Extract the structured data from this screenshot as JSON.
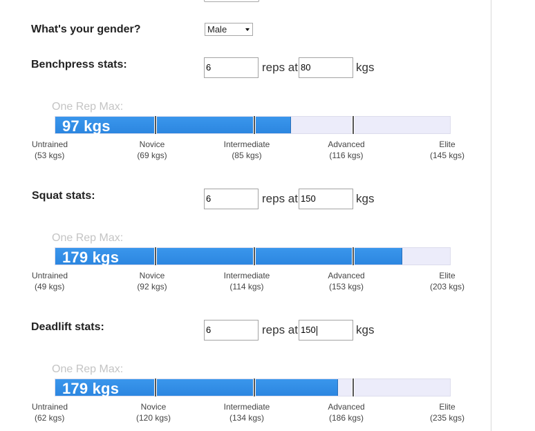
{
  "gender": {
    "label": "What's your gender?",
    "value": "Male"
  },
  "common": {
    "reps_at": "reps at",
    "unit": "kgs",
    "one_rep_max": "One Rep Max:"
  },
  "lifts": [
    {
      "label": "Benchpress stats:",
      "reps": "6",
      "weight": "80",
      "one_rep_max": "97 kgs",
      "fill_fraction": 0.595,
      "levels": [
        {
          "name": "Untrained",
          "kgs": "(53 kgs)"
        },
        {
          "name": "Novice",
          "kgs": "(69 kgs)"
        },
        {
          "name": "Intermediate",
          "kgs": "(85 kgs)"
        },
        {
          "name": "Advanced",
          "kgs": "(116 kgs)"
        },
        {
          "name": "Elite",
          "kgs": "(145 kgs)"
        }
      ]
    },
    {
      "label": "Squat stats:",
      "reps": "6",
      "weight": "150",
      "one_rep_max": "179 kgs",
      "fill_fraction": 0.878,
      "levels": [
        {
          "name": "Untrained",
          "kgs": "(49 kgs)"
        },
        {
          "name": "Novice",
          "kgs": "(92 kgs)"
        },
        {
          "name": "Intermediate",
          "kgs": "(114 kgs)"
        },
        {
          "name": "Advanced",
          "kgs": "(153 kgs)"
        },
        {
          "name": "Elite",
          "kgs": "(203 kgs)"
        }
      ]
    },
    {
      "label": "Deadlift stats:",
      "reps": "6",
      "weight": "150",
      "one_rep_max": "179 kgs",
      "fill_fraction": 0.715,
      "levels": [
        {
          "name": "Untrained",
          "kgs": "(62 kgs)"
        },
        {
          "name": "Novice",
          "kgs": "(120 kgs)"
        },
        {
          "name": "Intermediate",
          "kgs": "(134 kgs)"
        },
        {
          "name": "Advanced",
          "kgs": "(186 kgs)"
        },
        {
          "name": "Elite",
          "kgs": "(235 kgs)"
        }
      ]
    }
  ]
}
